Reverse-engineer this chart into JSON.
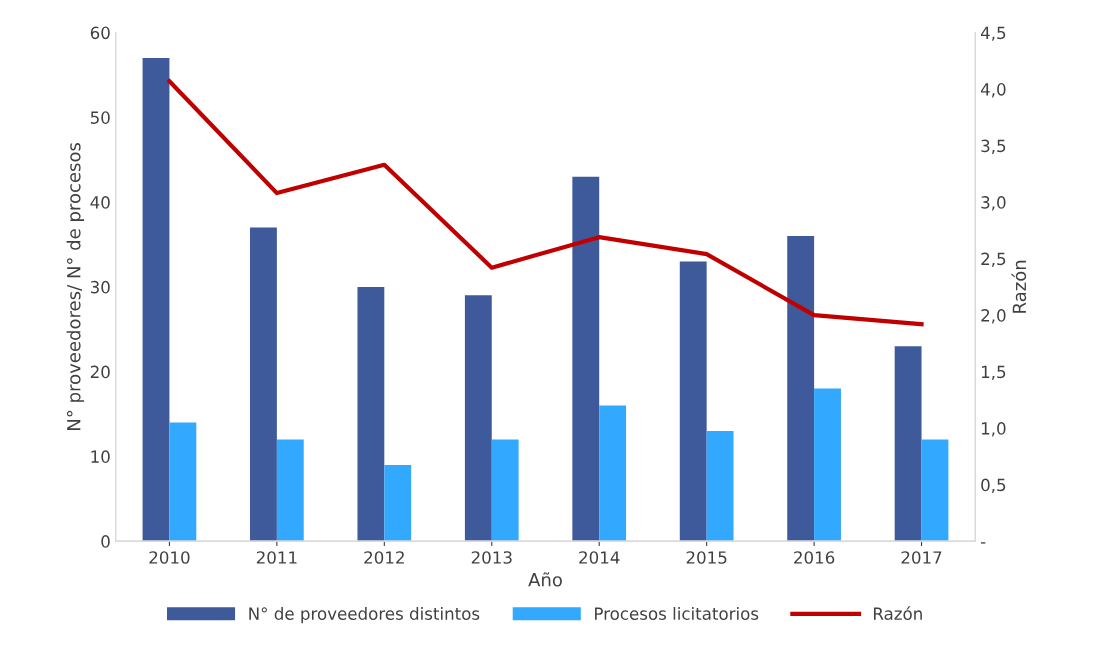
{
  "chart_data": {
    "type": "bar",
    "xlabel": "Año",
    "ylabel": "N° proveedores/ N° de procesos",
    "y2label": "Razón",
    "categories": [
      "2010",
      "2011",
      "2012",
      "2013",
      "2014",
      "2015",
      "2016",
      "2017"
    ],
    "series": [
      {
        "name": "N° de proveedores distintos",
        "color": "#3f5a9a",
        "values": [
          57,
          37,
          30,
          29,
          43,
          33,
          36,
          23
        ]
      },
      {
        "name": "Procesos licitatorios",
        "color": "#33a8ff",
        "values": [
          14,
          12,
          9,
          12,
          16,
          13,
          18,
          12
        ]
      },
      {
        "name": "Razón",
        "type": "line",
        "axis": "y2",
        "color": "#c00000",
        "values": [
          4.07,
          3.08,
          3.33,
          2.42,
          2.69,
          2.54,
          2.0,
          1.92
        ]
      }
    ],
    "ylim": [
      0,
      60
    ],
    "yticks": [
      0,
      10,
      20,
      30,
      40,
      50,
      60
    ],
    "y2lim": [
      0,
      4.5
    ],
    "y2ticks": [
      {
        "value": 0,
        "label": "-"
      },
      {
        "value": 0.5,
        "label": "0,5"
      },
      {
        "value": 1.0,
        "label": "1,0"
      },
      {
        "value": 1.5,
        "label": "1,5"
      },
      {
        "value": 2.0,
        "label": "2,0"
      },
      {
        "value": 2.5,
        "label": "2,5"
      },
      {
        "value": 3.0,
        "label": "3,0"
      },
      {
        "value": 3.5,
        "label": "3,5"
      },
      {
        "value": 4.0,
        "label": "4,0"
      },
      {
        "value": 4.5,
        "label": "4,5"
      }
    ],
    "grid": false,
    "legend": "bottom",
    "marker": "none",
    "line_style": "solid"
  }
}
